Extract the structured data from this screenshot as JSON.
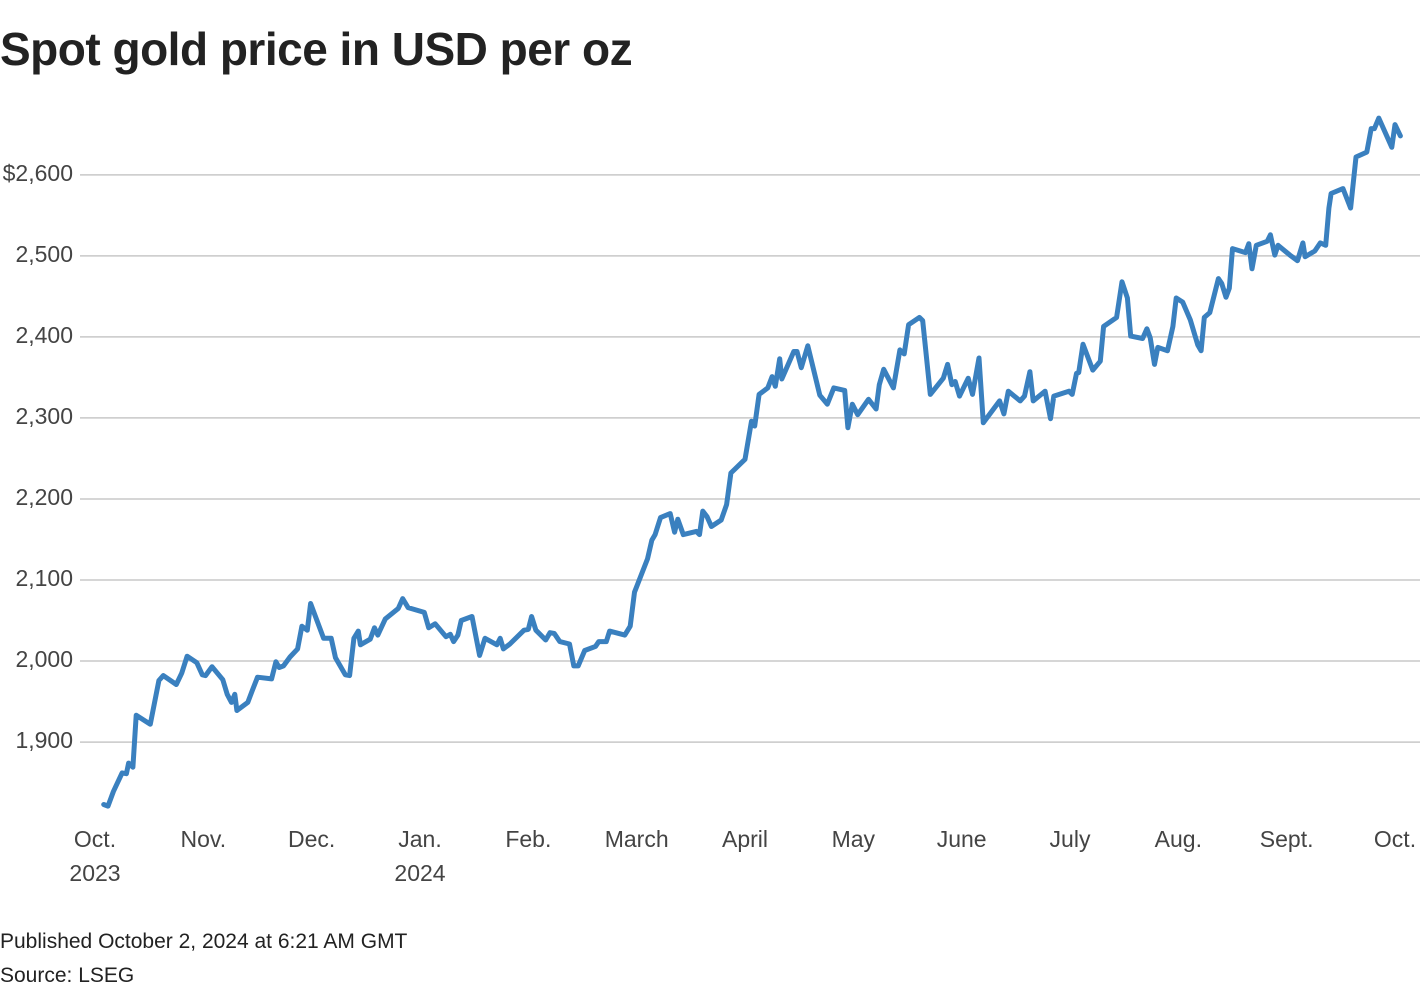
{
  "chart_data": {
    "type": "line",
    "title": "Spot gold price in USD per oz",
    "footer": [
      "Published October 2, 2024 at 6:21 AM GMT",
      "Source: LSEG"
    ],
    "color": "#3a80bf",
    "grid": true,
    "xlim": [
      0,
      12
    ],
    "xticks": [
      {
        "value": 0,
        "label": "Oct.\n2023"
      },
      {
        "value": 1,
        "label": "Nov."
      },
      {
        "value": 2,
        "label": "Dec."
      },
      {
        "value": 3,
        "label": "Jan.\n2024"
      },
      {
        "value": 4,
        "label": "Feb."
      },
      {
        "value": 5,
        "label": "March"
      },
      {
        "value": 6,
        "label": "April"
      },
      {
        "value": 7,
        "label": "May"
      },
      {
        "value": 8,
        "label": "June"
      },
      {
        "value": 9,
        "label": "July"
      },
      {
        "value": 10,
        "label": "Aug."
      },
      {
        "value": 11,
        "label": "Sept."
      },
      {
        "value": 12,
        "label": "Oct."
      }
    ],
    "ylim": [
      1810,
      2680
    ],
    "yticks": [
      {
        "value": 1900,
        "label": "1,900"
      },
      {
        "value": 2000,
        "label": "2,000"
      },
      {
        "value": 2100,
        "label": "2,100"
      },
      {
        "value": 2200,
        "label": "2,200"
      },
      {
        "value": 2300,
        "label": "2,300"
      },
      {
        "value": 2400,
        "label": "2,400"
      },
      {
        "value": 2500,
        "label": "2,500"
      },
      {
        "value": 2600,
        "label": "$2,600"
      }
    ],
    "x": [
      0.08,
      0.12,
      0.17,
      0.25,
      0.29,
      0.31,
      0.35,
      0.38,
      0.51,
      0.59,
      0.63,
      0.75,
      0.8,
      0.85,
      0.94,
      0.99,
      1.02,
      1.08,
      1.18,
      1.22,
      1.26,
      1.29,
      1.31,
      1.41,
      1.45,
      1.5,
      1.63,
      1.67,
      1.7,
      1.74,
      1.8,
      1.87,
      1.91,
      1.96,
      1.99,
      2.11,
      2.18,
      2.22,
      2.31,
      2.35,
      2.39,
      2.43,
      2.45,
      2.54,
      2.58,
      2.61,
      2.68,
      2.8,
      2.84,
      2.89,
      3.04,
      3.08,
      3.14,
      3.24,
      3.28,
      3.31,
      3.35,
      3.38,
      3.48,
      3.55,
      3.6,
      3.71,
      3.74,
      3.77,
      3.83,
      3.96,
      4.0,
      4.03,
      4.07,
      4.16,
      4.2,
      4.24,
      4.29,
      4.38,
      4.42,
      4.46,
      4.52,
      4.62,
      4.65,
      4.72,
      4.75,
      4.89,
      4.94,
      4.98,
      5.1,
      5.14,
      5.17,
      5.22,
      5.31,
      5.35,
      5.38,
      5.43,
      5.55,
      5.58,
      5.61,
      5.65,
      5.69,
      5.78,
      5.83,
      5.87,
      6.0,
      6.06,
      6.09,
      6.13,
      6.21,
      6.25,
      6.28,
      6.32,
      6.34,
      6.45,
      6.48,
      6.52,
      6.58,
      6.69,
      6.76,
      6.82,
      6.92,
      6.95,
      6.99,
      7.04,
      7.14,
      7.21,
      7.24,
      7.28,
      7.37,
      7.43,
      7.47,
      7.51,
      7.61,
      7.64,
      7.71,
      7.83,
      7.87,
      7.91,
      7.94,
      7.98,
      8.06,
      8.1,
      8.16,
      8.2,
      8.35,
      8.39,
      8.43,
      8.54,
      8.58,
      8.63,
      8.66,
      8.77,
      8.82,
      8.85,
      8.99,
      9.02,
      9.06,
      9.08,
      9.12,
      9.21,
      9.28,
      9.31,
      9.43,
      9.48,
      9.53,
      9.56,
      9.67,
      9.71,
      9.74,
      9.78,
      9.81,
      9.9,
      9.95,
      9.98,
      10.04,
      10.11,
      10.18,
      10.21,
      10.24,
      10.29,
      10.37,
      10.4,
      10.44,
      10.47,
      10.5,
      10.62,
      10.65,
      10.68,
      10.72,
      10.82,
      10.85,
      10.89,
      10.92,
      11.03,
      11.1,
      11.15,
      11.17,
      11.26,
      11.31,
      11.36,
      11.39,
      11.41,
      11.52,
      11.59,
      11.64,
      11.74,
      11.78,
      11.81,
      11.85,
      11.97,
      12.0,
      12.05
    ],
    "values": [
      1823,
      1821,
      1839,
      1862,
      1861,
      1874,
      1869,
      1933,
      1922,
      1976,
      1982,
      1971,
      1985,
      2006,
      1998,
      1983,
      1982,
      1993,
      1977,
      1959,
      1949,
      1959,
      1939,
      1949,
      1963,
      1980,
      1978,
      1999,
      1992,
      1994,
      2005,
      2015,
      2043,
      2038,
      2071,
      2028,
      2028,
      2004,
      1983,
      1982,
      2028,
      2037,
      2020,
      2027,
      2041,
      2032,
      2052,
      2065,
      2077,
      2066,
      2060,
      2041,
      2046,
      2030,
      2033,
      2024,
      2032,
      2050,
      2055,
      2007,
      2028,
      2020,
      2028,
      2015,
      2021,
      2038,
      2039,
      2055,
      2038,
      2026,
      2035,
      2034,
      2024,
      2021,
      1994,
      1994,
      2013,
      2018,
      2024,
      2024,
      2037,
      2032,
      2043,
      2085,
      2126,
      2149,
      2156,
      2177,
      2182,
      2159,
      2175,
      2156,
      2160,
      2156,
      2185,
      2178,
      2166,
      2174,
      2193,
      2232,
      2249,
      2296,
      2290,
      2329,
      2337,
      2351,
      2339,
      2373,
      2348,
      2382,
      2382,
      2362,
      2389,
      2328,
      2317,
      2337,
      2334,
      2288,
      2317,
      2304,
      2323,
      2311,
      2341,
      2360,
      2337,
      2384,
      2379,
      2415,
      2424,
      2420,
      2329,
      2349,
      2366,
      2341,
      2345,
      2327,
      2349,
      2329,
      2374,
      2294,
      2321,
      2305,
      2333,
      2321,
      2327,
      2357,
      2321,
      2333,
      2299,
      2327,
      2333,
      2329,
      2355,
      2356,
      2391,
      2359,
      2370,
      2413,
      2424,
      2468,
      2448,
      2401,
      2398,
      2410,
      2399,
      2366,
      2387,
      2383,
      2413,
      2448,
      2443,
      2421,
      2390,
      2383,
      2424,
      2430,
      2472,
      2466,
      2449,
      2460,
      2509,
      2504,
      2515,
      2484,
      2513,
      2518,
      2526,
      2501,
      2513,
      2501,
      2494,
      2516,
      2499,
      2506,
      2516,
      2513,
      2559,
      2577,
      2583,
      2559,
      2622,
      2628,
      2657,
      2657,
      2670,
      2634,
      2662,
      2648
    ]
  }
}
